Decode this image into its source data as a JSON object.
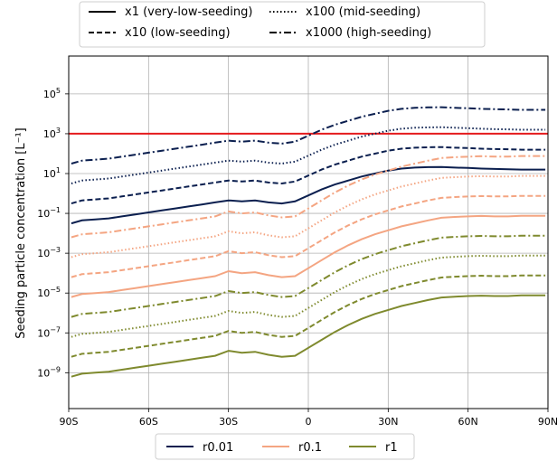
{
  "chart_data": {
    "type": "line",
    "xlabel": "",
    "ylabel": "Seeding particle concentration [L⁻¹]",
    "xlim": [
      -90,
      90
    ],
    "ylim_log10": [
      -10.8,
      6.9
    ],
    "yscale": "log",
    "grid": true,
    "x_ticks": [
      {
        "value": -90,
        "label": "90S"
      },
      {
        "value": -60,
        "label": "60S"
      },
      {
        "value": -30,
        "label": "30S"
      },
      {
        "value": 0,
        "label": "0"
      },
      {
        "value": 30,
        "label": "30N"
      },
      {
        "value": 60,
        "label": "60N"
      },
      {
        "value": 90,
        "label": "90N"
      }
    ],
    "y_ticks": [
      {
        "exp": 5,
        "base": "10",
        "sup": "5"
      },
      {
        "exp": 3,
        "base": "10",
        "sup": "3"
      },
      {
        "exp": 1,
        "base": "10",
        "sup": "1"
      },
      {
        "exp": -1,
        "base": "10",
        "sup": "−1"
      },
      {
        "exp": -3,
        "base": "10",
        "sup": "−3"
      },
      {
        "exp": -5,
        "base": "10",
        "sup": "−5"
      },
      {
        "exp": -7,
        "base": "10",
        "sup": "−7"
      },
      {
        "exp": -9,
        "base": "10",
        "sup": "−9"
      }
    ],
    "reference_line": {
      "y": 1000,
      "color": "#e41a1c"
    },
    "style_legend": [
      {
        "label": "x1 (very-low-seeding)",
        "dash": "solid"
      },
      {
        "label": "x10 (low-seeding)",
        "dash": "dashed"
      },
      {
        "label": "x100 (mid-seeding)",
        "dash": "dotted"
      },
      {
        "label": "x1000 (high-seeding)",
        "dash": "dashdot"
      }
    ],
    "color_legend": [
      {
        "label": "r0.01",
        "color": "#0b1f4f"
      },
      {
        "label": "r0.1",
        "color": "#f4a582"
      },
      {
        "label": "r1",
        "color": "#7f8a2e"
      }
    ],
    "x": [
      -89,
      -85,
      -80,
      -75,
      -70,
      -65,
      -60,
      -55,
      -50,
      -45,
      -40,
      -35,
      -30,
      -25,
      -20,
      -15,
      -10,
      -5,
      0,
      5,
      10,
      15,
      20,
      25,
      30,
      35,
      40,
      45,
      50,
      55,
      60,
      65,
      70,
      75,
      80,
      85,
      89
    ],
    "r001_x1_log10": [
      -1.5,
      -1.35,
      -1.3,
      -1.25,
      -1.15,
      -1.05,
      -0.95,
      -0.85,
      -0.75,
      -0.65,
      -0.55,
      -0.45,
      -0.35,
      -0.4,
      -0.35,
      -0.45,
      -0.5,
      -0.4,
      -0.1,
      0.2,
      0.45,
      0.65,
      0.85,
      1.0,
      1.15,
      1.25,
      1.3,
      1.32,
      1.33,
      1.3,
      1.28,
      1.25,
      1.23,
      1.22,
      1.2,
      1.2,
      1.2
    ],
    "r01_x1_log10": [
      -5.2,
      -5.05,
      -5.0,
      -4.95,
      -4.85,
      -4.75,
      -4.65,
      -4.55,
      -4.45,
      -4.35,
      -4.25,
      -4.15,
      -3.9,
      -4.0,
      -3.95,
      -4.1,
      -4.2,
      -4.15,
      -3.75,
      -3.35,
      -2.95,
      -2.6,
      -2.3,
      -2.05,
      -1.85,
      -1.65,
      -1.5,
      -1.35,
      -1.22,
      -1.18,
      -1.15,
      -1.13,
      -1.15,
      -1.15,
      -1.12,
      -1.12,
      -1.12
    ]
  }
}
